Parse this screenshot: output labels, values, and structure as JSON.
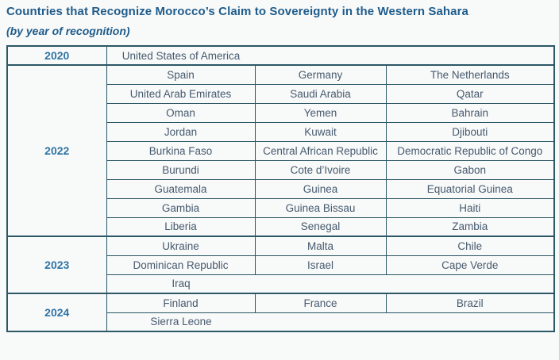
{
  "page": {
    "title": "Countries that Recognize Morocco’s Claim to Sovereignty in the Western Sahara",
    "subtitle": "(by year of recognition)"
  },
  "colors": {
    "heading_blue": "#1F5C8B",
    "year_blue": "#2F74A4",
    "country_text": "#465A6E",
    "border_teal": "#2C5765",
    "background": "#F8F9F9"
  },
  "table": {
    "groups": [
      {
        "year": "2020",
        "rows": [
          {
            "span": true,
            "cells": [
              "United States of America"
            ]
          }
        ]
      },
      {
        "year": "2022",
        "rows": [
          {
            "cells": [
              "Spain",
              "Germany",
              "The Netherlands"
            ]
          },
          {
            "cells": [
              "United Arab Emirates",
              "Saudi Arabia",
              "Qatar"
            ]
          },
          {
            "cells": [
              "Oman",
              "Yemen",
              "Bahrain"
            ]
          },
          {
            "cells": [
              "Jordan",
              "Kuwait",
              "Djibouti"
            ]
          },
          {
            "cells": [
              "Burkina Faso",
              "Central African Republic",
              "Democratic Republic of Congo"
            ]
          },
          {
            "cells": [
              "Burundi",
              "Cote d’Ivoire",
              "Gabon"
            ]
          },
          {
            "cells": [
              "Guatemala",
              "Guinea",
              "Equatorial Guinea"
            ]
          },
          {
            "cells": [
              "Gambia",
              "Guinea Bissau",
              "Haiti"
            ]
          },
          {
            "cells": [
              "Liberia",
              "Senegal",
              "Zambia"
            ]
          }
        ]
      },
      {
        "year": "2023",
        "rows": [
          {
            "cells": [
              "Ukraine",
              "Malta",
              "Chile"
            ]
          },
          {
            "cells": [
              "Dominican Republic",
              "Israel",
              "Cape Verde"
            ]
          },
          {
            "span": true,
            "cells": [
              "Iraq"
            ]
          }
        ]
      },
      {
        "year": "2024",
        "rows": [
          {
            "cells": [
              "Finland",
              "France",
              "Brazil"
            ]
          },
          {
            "span": true,
            "cells": [
              "Sierra Leone"
            ]
          }
        ]
      }
    ]
  }
}
